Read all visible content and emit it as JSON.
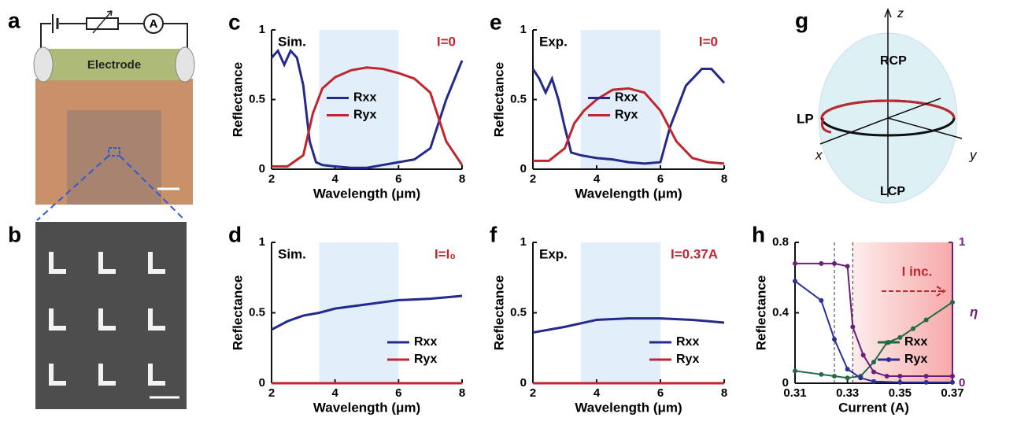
{
  "chart_data": [
    {
      "type": "line",
      "panel": "c",
      "method": "Sim.",
      "condition": "I=0",
      "condition_color": "#c0262d",
      "xlabel": "Wavelength (μm)",
      "ylabel": "Reflectance",
      "xlim": [
        2,
        8
      ],
      "ylim": [
        0,
        1
      ],
      "xticks": [
        2,
        4,
        6,
        8
      ],
      "yticks": [
        0,
        0.5,
        1
      ],
      "highlight_x": [
        3.5,
        6
      ],
      "legend_position": "center",
      "series": [
        {
          "name": "Rxx",
          "color": "#232a8c",
          "x": [
            2,
            2.2,
            2.4,
            2.6,
            2.8,
            3.0,
            3.2,
            3.4,
            3.6,
            4,
            4.5,
            5,
            5.5,
            6,
            6.5,
            7,
            7.5,
            8
          ],
          "values": [
            0.8,
            0.85,
            0.75,
            0.85,
            0.8,
            0.6,
            0.2,
            0.05,
            0.03,
            0.02,
            0.01,
            0.01,
            0.03,
            0.05,
            0.07,
            0.15,
            0.5,
            0.78
          ]
        },
        {
          "name": "Ryx",
          "color": "#c0262d",
          "x": [
            2,
            2.5,
            3,
            3.3,
            3.6,
            4,
            4.5,
            5,
            5.5,
            6,
            6.5,
            7,
            7.5,
            8
          ],
          "values": [
            0.02,
            0.02,
            0.1,
            0.4,
            0.58,
            0.66,
            0.71,
            0.73,
            0.72,
            0.69,
            0.65,
            0.55,
            0.2,
            0.03
          ]
        }
      ]
    },
    {
      "type": "line",
      "panel": "d",
      "method": "Sim.",
      "condition": "I=I₀",
      "condition_color": "#c0262d",
      "xlabel": "Wavelength (μm)",
      "ylabel": "Reflectance",
      "xlim": [
        2,
        8
      ],
      "ylim": [
        0,
        1
      ],
      "xticks": [
        2,
        4,
        6,
        8
      ],
      "yticks": [
        0,
        0.5,
        1
      ],
      "highlight_x": [
        3.5,
        6
      ],
      "legend_position": "lower right",
      "series": [
        {
          "name": "Rxx",
          "color": "#232a8c",
          "x": [
            2,
            2.5,
            3,
            3.5,
            4,
            5,
            6,
            7,
            8
          ],
          "values": [
            0.38,
            0.44,
            0.48,
            0.5,
            0.53,
            0.56,
            0.59,
            0.6,
            0.62
          ]
        },
        {
          "name": "Ryx",
          "color": "#c0262d",
          "x": [
            2,
            8
          ],
          "values": [
            0,
            0
          ]
        }
      ]
    },
    {
      "type": "line",
      "panel": "e",
      "method": "Exp.",
      "condition": "I=0",
      "condition_color": "#c0262d",
      "xlabel": "Wavelength (μm)",
      "ylabel": "Reflectance",
      "xlim": [
        2,
        8
      ],
      "ylim": [
        0,
        1
      ],
      "xticks": [
        2,
        4,
        6,
        8
      ],
      "yticks": [
        0,
        0.5,
        1
      ],
      "highlight_x": [
        3.5,
        6
      ],
      "legend_position": "center",
      "series": [
        {
          "name": "Rxx",
          "color": "#232a8c",
          "x": [
            2,
            2.2,
            2.4,
            2.6,
            2.8,
            3.0,
            3.2,
            3.5,
            4,
            4.5,
            5,
            5.5,
            6,
            6.3,
            6.8,
            7.3,
            7.6,
            8
          ],
          "values": [
            0.72,
            0.65,
            0.55,
            0.65,
            0.5,
            0.3,
            0.12,
            0.1,
            0.08,
            0.07,
            0.05,
            0.04,
            0.05,
            0.3,
            0.6,
            0.72,
            0.72,
            0.62
          ]
        },
        {
          "name": "Ryx",
          "color": "#c0262d",
          "x": [
            2,
            2.5,
            3,
            3.3,
            3.6,
            4,
            4.5,
            5,
            5.5,
            6,
            6.5,
            7,
            7.5,
            8
          ],
          "values": [
            0.06,
            0.06,
            0.15,
            0.33,
            0.42,
            0.5,
            0.57,
            0.58,
            0.55,
            0.42,
            0.2,
            0.08,
            0.05,
            0.04
          ]
        }
      ]
    },
    {
      "type": "line",
      "panel": "f",
      "method": "Exp.",
      "condition": "I=0.37A",
      "condition_color": "#c0262d",
      "xlabel": "Wavelength (μm)",
      "ylabel": "Reflectance",
      "xlim": [
        2,
        8
      ],
      "ylim": [
        0,
        1
      ],
      "xticks": [
        2,
        4,
        6,
        8
      ],
      "yticks": [
        0,
        0.5,
        1
      ],
      "highlight_x": [
        3.5,
        6
      ],
      "legend_position": "lower right",
      "series": [
        {
          "name": "Rxx",
          "color": "#232a8c",
          "x": [
            2,
            3,
            4,
            5,
            6,
            7,
            8
          ],
          "values": [
            0.36,
            0.4,
            0.45,
            0.46,
            0.46,
            0.45,
            0.43
          ]
        },
        {
          "name": "Ryx",
          "color": "#c0262d",
          "x": [
            2,
            8
          ],
          "values": [
            0,
            0
          ]
        }
      ]
    },
    {
      "type": "line",
      "panel": "h",
      "annotation": "I inc.",
      "xlabel": "Current (A)",
      "ylabel": "Reflectance",
      "y2label": "η",
      "xlim": [
        0.31,
        0.37
      ],
      "ylim": [
        0,
        0.8
      ],
      "y2lim": [
        0,
        1
      ],
      "xticks": [
        0.31,
        0.33,
        0.35,
        0.37
      ],
      "yticks": [
        0,
        0.4,
        0.8
      ],
      "y2ticks": [
        0,
        1
      ],
      "vlines": [
        0.325,
        0.332
      ],
      "legend_position": "lower right",
      "markers": true,
      "series": [
        {
          "name": "Rxx",
          "color": "#1e6b45",
          "x": [
            0.31,
            0.32,
            0.325,
            0.33,
            0.335,
            0.34,
            0.345,
            0.35,
            0.355,
            0.36,
            0.37
          ],
          "values": [
            0.07,
            0.05,
            0.04,
            0.03,
            0.04,
            0.12,
            0.23,
            0.26,
            0.31,
            0.36,
            0.46
          ]
        },
        {
          "name": "Ryx",
          "color": "#2b2f9a",
          "x": [
            0.31,
            0.32,
            0.325,
            0.33,
            0.335,
            0.34,
            0.35,
            0.36,
            0.37
          ],
          "values": [
            0.58,
            0.47,
            0.25,
            0.08,
            0.03,
            0.01,
            0.005,
            0.005,
            0.005
          ]
        },
        {
          "color": "#6b1f7a",
          "axis": "y2",
          "x": [
            0.31,
            0.32,
            0.325,
            0.33,
            0.332,
            0.336,
            0.34,
            0.345,
            0.35,
            0.36,
            0.37
          ],
          "values": [
            0.85,
            0.85,
            0.85,
            0.83,
            0.4,
            0.2,
            0.08,
            0.05,
            0.05,
            0.05,
            0.05
          ]
        }
      ]
    }
  ],
  "diagrams": {
    "a": {
      "panel": "a",
      "ammeter": "A",
      "electrode": "Electrode"
    },
    "b": {
      "panel": "b"
    },
    "g": {
      "panel": "g",
      "z": "z",
      "rcp": "RCP",
      "lcp": "LCP",
      "lp": "LP",
      "x": "x",
      "y": "y"
    }
  }
}
